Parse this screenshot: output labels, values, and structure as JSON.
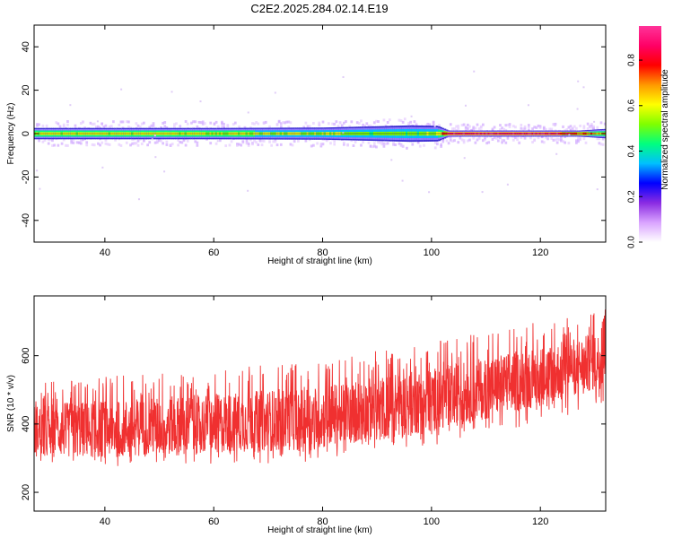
{
  "title": "C2E2.2025.284.02.14.E19",
  "chart_data": [
    {
      "type": "heatmap",
      "xlabel": "Height of straight line (km)",
      "ylabel": "Frequency (Hz)",
      "xlim": [
        27,
        132
      ],
      "ylim": [
        -50,
        50
      ],
      "xticks": [
        40,
        60,
        80,
        100,
        120
      ],
      "yticks": [
        -40,
        -20,
        0,
        20,
        40
      ],
      "grid": false,
      "band": {
        "x_start": 27,
        "x_end": 132,
        "center_frequency": 0,
        "core_halfwidth_by_x": [
          [
            27,
            2.6
          ],
          [
            60,
            2.6
          ],
          [
            80,
            2.8
          ],
          [
            90,
            3.4
          ],
          [
            96,
            3.8
          ],
          [
            101,
            3.6
          ],
          [
            103,
            1.4
          ],
          [
            127,
            1.4
          ],
          [
            132,
            2.2
          ]
        ],
        "intensity_by_x": [
          [
            27,
            0.55
          ],
          [
            40,
            0.55
          ],
          [
            60,
            0.55
          ],
          [
            80,
            0.5
          ],
          [
            90,
            0.45
          ],
          [
            96,
            0.45
          ],
          [
            101,
            0.5
          ],
          [
            103,
            0.85
          ],
          [
            122,
            0.85
          ],
          [
            127,
            0.7
          ],
          [
            132,
            0.6
          ]
        ]
      },
      "colorbar": {
        "label": "Normalized spectral amplitude",
        "range": [
          0,
          0.95
        ],
        "ticks": [
          0.0,
          0.2,
          0.4,
          0.6,
          0.8
        ],
        "tick_labels": [
          "0.0",
          "0.2",
          "0.4",
          "0.6",
          "0.8"
        ],
        "colors": [
          "#ffffff",
          "#d9a3ff",
          "#8a2be2",
          "#0000ff",
          "#00bfff",
          "#00ff7f",
          "#7fff00",
          "#ffff00",
          "#ff9900",
          "#ff0000",
          "#ff0066",
          "#ff3399"
        ]
      }
    },
    {
      "type": "line",
      "xlabel": "Height of straight line (km)",
      "ylabel": "SNR (10 * v/v)",
      "xlim": [
        27,
        132
      ],
      "ylim": [
        145,
        775
      ],
      "xticks": [
        40,
        60,
        80,
        100,
        120
      ],
      "yticks": [
        200,
        400,
        600
      ],
      "grid": false,
      "series": [
        {
          "color": "#f03030",
          "envelope": [
            [
              27,
              265,
              520
            ],
            [
              40,
              275,
              540
            ],
            [
              60,
              280,
              560
            ],
            [
              80,
              290,
              590
            ],
            [
              100,
              330,
              640
            ],
            [
              120,
              400,
              700
            ],
            [
              132,
              460,
              740
            ]
          ],
          "mean": [
            [
              27,
              380
            ],
            [
              40,
              385
            ],
            [
              60,
              400
            ],
            [
              80,
              420
            ],
            [
              100,
              470
            ],
            [
              120,
              540
            ],
            [
              132,
              590
            ]
          ]
        }
      ]
    }
  ]
}
